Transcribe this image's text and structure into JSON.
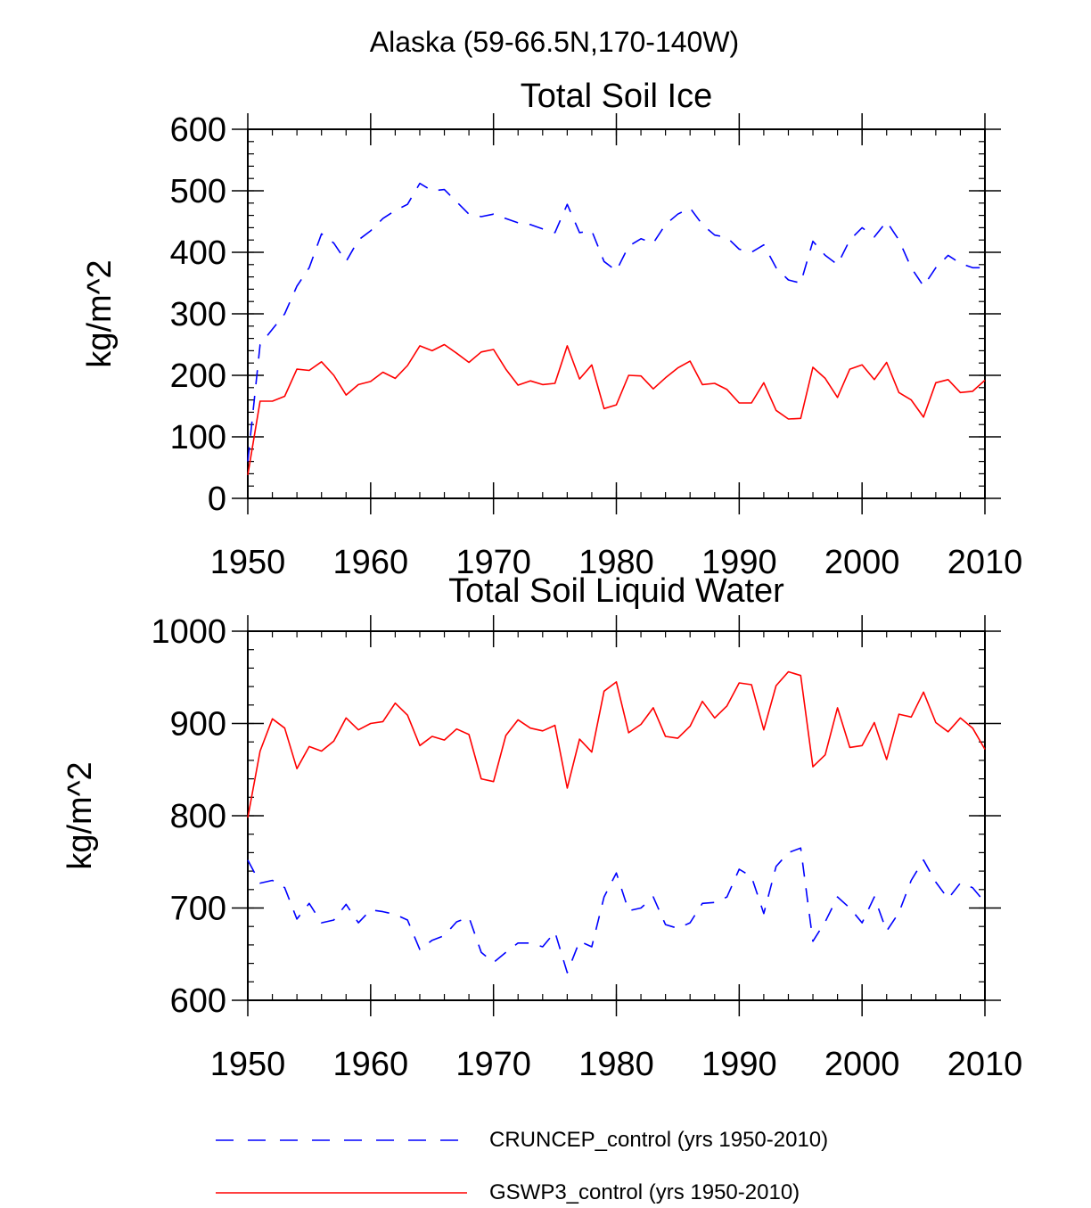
{
  "page_title": "Alaska (59-66.5N,170-140W)",
  "legend": {
    "series_a": "CRUNCEP_control (yrs 1950-2010)",
    "series_b": "GSWP3_control (yrs 1950-2010)"
  },
  "colors": {
    "cruncep": "#0000ff",
    "gswp3": "#ff0000",
    "axis": "#000000"
  },
  "chart_data": [
    {
      "type": "line",
      "title": "Total Soil Ice",
      "xlabel": "",
      "ylabel": "kg/m^2",
      "xlim": [
        1950,
        2010
      ],
      "ylim": [
        0,
        600
      ],
      "xticks": [
        1950,
        1960,
        1970,
        1980,
        1990,
        2000,
        2010
      ],
      "yticks": [
        0,
        100,
        200,
        300,
        400,
        500,
        600
      ],
      "x": [
        1950,
        1951,
        1952,
        1953,
        1954,
        1955,
        1956,
        1957,
        1958,
        1959,
        1960,
        1961,
        1962,
        1963,
        1964,
        1965,
        1966,
        1967,
        1968,
        1969,
        1970,
        1971,
        1972,
        1973,
        1974,
        1975,
        1976,
        1977,
        1978,
        1979,
        1980,
        1981,
        1982,
        1983,
        1984,
        1985,
        1986,
        1987,
        1988,
        1989,
        1990,
        1991,
        1992,
        1993,
        1994,
        1995,
        1996,
        1997,
        1998,
        1999,
        2000,
        2001,
        2002,
        2003,
        2004,
        2005,
        2006,
        2007,
        2008,
        2009,
        2010
      ],
      "series": [
        {
          "name": "CRUNCEP_control (yrs 1950-2010)",
          "style": "dashed",
          "values": [
            60,
            250,
            275,
            300,
            345,
            375,
            430,
            415,
            385,
            420,
            435,
            455,
            468,
            478,
            512,
            500,
            502,
            482,
            462,
            458,
            462,
            455,
            448,
            445,
            438,
            432,
            478,
            432,
            435,
            385,
            370,
            410,
            422,
            415,
            445,
            462,
            472,
            445,
            428,
            424,
            405,
            400,
            412,
            375,
            355,
            350,
            418,
            395,
            380,
            420,
            440,
            425,
            450,
            420,
            375,
            345,
            375,
            395,
            382,
            375,
            375
          ]
        },
        {
          "name": "GSWP3_control (yrs 1950-2010)",
          "style": "solid",
          "values": [
            38,
            158,
            158,
            166,
            210,
            208,
            222,
            200,
            168,
            185,
            190,
            205,
            195,
            216,
            248,
            240,
            250,
            236,
            221,
            238,
            242,
            210,
            184,
            191,
            185,
            187,
            248,
            194,
            217,
            146,
            152,
            200,
            199,
            178,
            196,
            212,
            223,
            185,
            187,
            177,
            155,
            155,
            188,
            143,
            129,
            130,
            213,
            195,
            164,
            210,
            217,
            193,
            221,
            172,
            160,
            132,
            188,
            193,
            172,
            174,
            192
          ]
        }
      ]
    },
    {
      "type": "line",
      "title": "Total Soil Liquid Water",
      "xlabel": "",
      "ylabel": "kg/m^2",
      "xlim": [
        1950,
        2010
      ],
      "ylim": [
        600,
        1000
      ],
      "xticks": [
        1950,
        1960,
        1970,
        1980,
        1990,
        2000,
        2010
      ],
      "yticks": [
        600,
        700,
        800,
        900,
        1000
      ],
      "x": [
        1950,
        1951,
        1952,
        1953,
        1954,
        1955,
        1956,
        1957,
        1958,
        1959,
        1960,
        1961,
        1962,
        1963,
        1964,
        1965,
        1966,
        1967,
        1968,
        1969,
        1970,
        1971,
        1972,
        1973,
        1974,
        1975,
        1976,
        1977,
        1978,
        1979,
        1980,
        1981,
        1982,
        1983,
        1984,
        1985,
        1986,
        1987,
        1988,
        1989,
        1990,
        1991,
        1992,
        1993,
        1994,
        1995,
        1996,
        1997,
        1998,
        1999,
        2000,
        2001,
        2002,
        2003,
        2004,
        2005,
        2006,
        2007,
        2008,
        2009,
        2010
      ],
      "series": [
        {
          "name": "CRUNCEP_control (yrs 1950-2010)",
          "style": "dashed",
          "values": [
            752,
            727,
            730,
            722,
            688,
            705,
            684,
            687,
            704,
            684,
            698,
            696,
            693,
            687,
            655,
            665,
            670,
            685,
            690,
            652,
            641,
            652,
            662,
            662,
            658,
            674,
            630,
            664,
            658,
            712,
            738,
            697,
            700,
            712,
            682,
            678,
            684,
            705,
            706,
            712,
            742,
            734,
            694,
            745,
            760,
            765,
            664,
            685,
            712,
            700,
            684,
            712,
            675,
            695,
            730,
            752,
            728,
            710,
            727,
            722,
            706
          ]
        },
        {
          "name": "GSWP3_control (yrs 1950-2010)",
          "style": "solid",
          "values": [
            798,
            870,
            905,
            895,
            851,
            875,
            870,
            881,
            906,
            893,
            900,
            902,
            922,
            909,
            876,
            886,
            882,
            894,
            888,
            840,
            837,
            887,
            904,
            895,
            892,
            898,
            830,
            883,
            869,
            935,
            945,
            890,
            899,
            917,
            886,
            884,
            897,
            924,
            906,
            919,
            944,
            942,
            893,
            941,
            956,
            952,
            853,
            866,
            917,
            874,
            876,
            901,
            861,
            910,
            907,
            934,
            901,
            891,
            906,
            895,
            872
          ]
        }
      ]
    }
  ]
}
